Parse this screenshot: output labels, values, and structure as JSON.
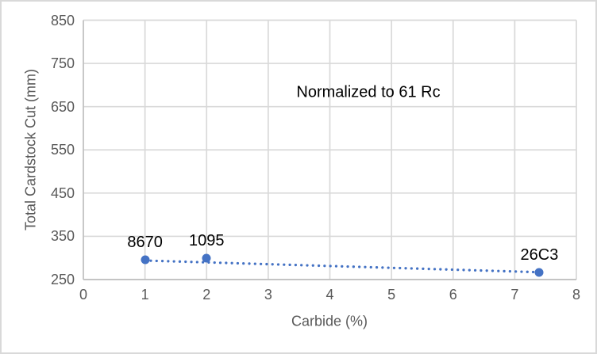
{
  "chart_data": {
    "type": "scatter",
    "annotation": "Normalized to 61 Rc",
    "xlabel": "Carbide (%)",
    "ylabel": "Total Cardstock Cut (mm)",
    "xlim": [
      0,
      8
    ],
    "ylim": [
      250,
      850
    ],
    "x_ticks": [
      0,
      1,
      2,
      3,
      4,
      5,
      6,
      7,
      8
    ],
    "y_ticks": [
      250,
      350,
      450,
      550,
      650,
      750,
      850
    ],
    "grid": true,
    "legend": false,
    "series": [
      {
        "name": "knife-steels",
        "points": [
          {
            "label": "8670",
            "x": 1.0,
            "y": 295
          },
          {
            "label": "1095",
            "x": 2.0,
            "y": 300
          },
          {
            "label": "26C3",
            "x": 7.4,
            "y": 267
          }
        ],
        "trendline": {
          "style": "dotted",
          "from": {
            "x": 1.0,
            "y": 294
          },
          "to": {
            "x": 7.4,
            "y": 267
          }
        }
      }
    ],
    "colors": {
      "marker": "#4472C4",
      "trendline": "#4472C4",
      "gridline": "#D9D9D9",
      "axis_line": "#BFBFBF",
      "tick_label": "#595959",
      "axis_title": "#595959",
      "data_label": "#000000",
      "annotation_text": "#000000",
      "chart_border": "#D9D9D9",
      "background": "#FFFFFF"
    }
  }
}
